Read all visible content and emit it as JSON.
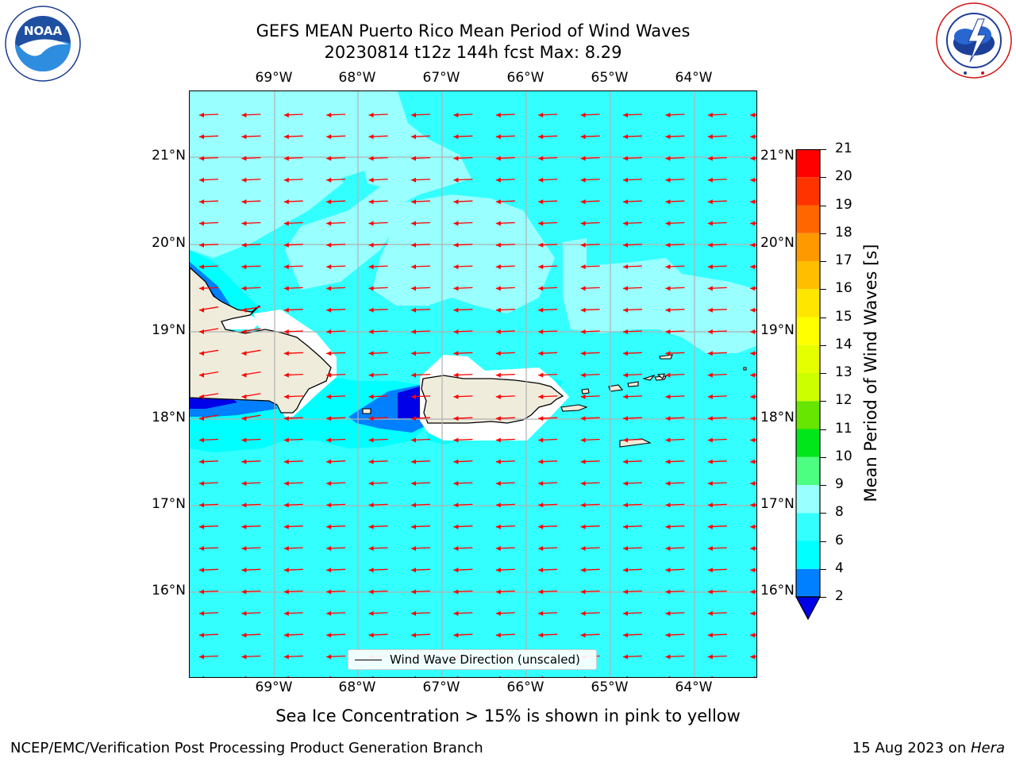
{
  "title": {
    "line1": "GEFS MEAN Puerto Rico Mean Period of Wind Waves",
    "line2": "20230814 t12z 144h fcst   Max: 8.29"
  },
  "logos": {
    "left": {
      "text": "NOAA",
      "ring_text": "NATIONAL OCEANIC AND ATMOSPHERIC ADMINISTRATION",
      "ring_text_bottom": "U.S. DEPARTMENT OF COMMERCE"
    },
    "right": {
      "ring_text": "NATIONAL WEATHER SERVICE"
    }
  },
  "map": {
    "lon_labels": [
      "69°W",
      "68°W",
      "67°W",
      "66°W",
      "65°W",
      "64°W"
    ],
    "lat_labels": [
      "21°N",
      "20°N",
      "19°N",
      "18°N",
      "17°N",
      "16°N"
    ],
    "grid": true,
    "colors": {
      "water_main": "#33ffff",
      "water_light": "#99ffff",
      "water_cyan": "#00ffff",
      "water_blue": "#0080ff",
      "water_dark": "#0000e6",
      "land": "#efecdc",
      "no_data": "#ffffff",
      "arrow": "#ff0000"
    },
    "arrows": {
      "direction": "westward",
      "rows": 27,
      "cols": 14
    }
  },
  "colorbar": {
    "title": "Mean Period of Wind Waves [s]",
    "ticks": [
      "2",
      "4",
      "6",
      "8",
      "9",
      "10",
      "11",
      "12",
      "13",
      "14",
      "15",
      "16",
      "17",
      "18",
      "19",
      "20",
      "21"
    ],
    "bands": [
      {
        "from": 2,
        "to": 4,
        "color": "#0080ff"
      },
      {
        "from": 4,
        "to": 6,
        "color": "#00ffff"
      },
      {
        "from": 6,
        "to": 8,
        "color": "#33ffff"
      },
      {
        "from": 8,
        "to": 9,
        "color": "#99ffff"
      },
      {
        "from": 9,
        "to": 10,
        "color": "#4dff80"
      },
      {
        "from": 10,
        "to": 11,
        "color": "#00e61a"
      },
      {
        "from": 11,
        "to": 12,
        "color": "#66e600"
      },
      {
        "from": 12,
        "to": 13,
        "color": "#ccff00"
      },
      {
        "from": 13,
        "to": 14,
        "color": "#e6ff00"
      },
      {
        "from": 14,
        "to": 15,
        "color": "#ffff00"
      },
      {
        "from": 15,
        "to": 16,
        "color": "#ffe600"
      },
      {
        "from": 16,
        "to": 17,
        "color": "#ffbf00"
      },
      {
        "from": 17,
        "to": 18,
        "color": "#ff9900"
      },
      {
        "from": 18,
        "to": 19,
        "color": "#ff6600"
      },
      {
        "from": 19,
        "to": 20,
        "color": "#ff3300"
      },
      {
        "from": 20,
        "to": 21,
        "color": "#ff0000"
      }
    ],
    "under_color": "#0000e6"
  },
  "legend": {
    "label": "Wind Wave Direction (unscaled)"
  },
  "ice_note": "Sea Ice Concentration > 15% is shown in pink to yellow",
  "footer": {
    "left": "NCEP/EMC/Verification Post Processing Product Generation Branch",
    "right_date": "15 Aug 2023 on ",
    "right_host": "Hera"
  }
}
